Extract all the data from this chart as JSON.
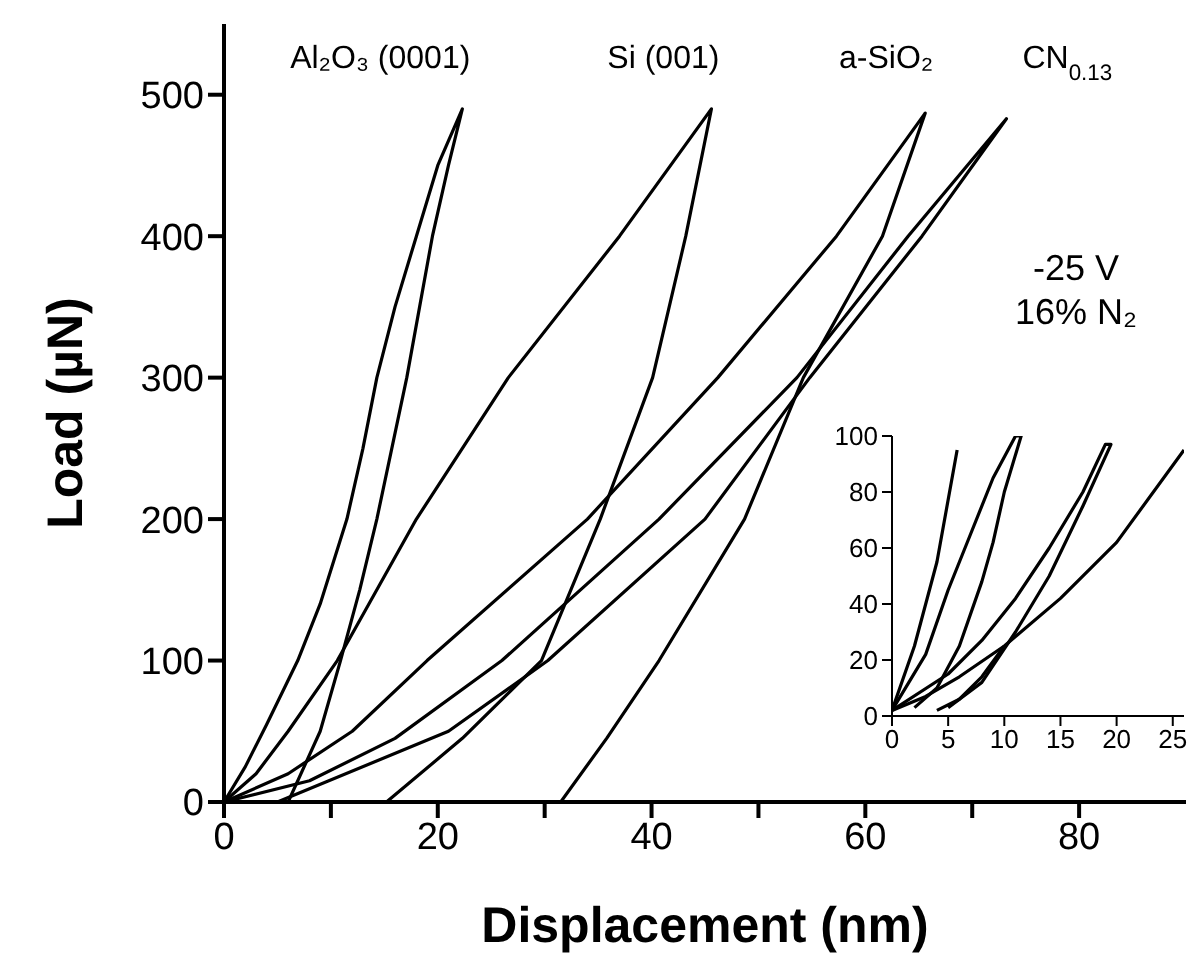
{
  "chart_data": [
    {
      "type": "line",
      "xlabel": "Displacement (nm)",
      "ylabel": "Load (µN)",
      "xlim": [
        0,
        90
      ],
      "xticks": [
        0,
        {
          "value": 10,
          "label": null
        },
        20,
        {
          "value": 30,
          "label": null
        },
        40,
        {
          "value": 50,
          "label": null
        },
        60,
        {
          "value": 70,
          "label": null
        },
        80
      ],
      "ylim": [
        0,
        550
      ],
      "yticks": [
        0,
        100,
        200,
        300,
        400,
        500
      ],
      "marker": "none",
      "annotations": [
        "-25 V",
        "16% N₂"
      ],
      "series": [
        {
          "name": "Al₂O₃ (0001)",
          "color": "#000000",
          "x": [
            0,
            2,
            4,
            6.9,
            9,
            11.5,
            13,
            14.3,
            16,
            18,
            20,
            22.3,
            21,
            19.5,
            18.3,
            17.1,
            15.7,
            14.3,
            12.7,
            10.9,
            9,
            6
          ],
          "values": [
            0,
            25,
            55,
            100,
            140,
            200,
            250,
            300,
            350,
            400,
            450,
            490,
            450,
            400,
            350,
            300,
            250,
            200,
            150,
            100,
            50,
            0
          ]
        },
        {
          "name": "Si (001)",
          "color": "#000000",
          "x": [
            0,
            3,
            6,
            10.6,
            18,
            26.6,
            37,
            45.6,
            43.2,
            40.1,
            35.2,
            29.7,
            22.3,
            15.2
          ],
          "values": [
            0,
            20,
            50,
            100,
            200,
            300,
            400,
            490,
            400,
            300,
            200,
            100,
            45,
            0
          ]
        },
        {
          "name": "a-SiO₂",
          "color": "#000000",
          "x": [
            0,
            6,
            12,
            19,
            34,
            46.2,
            57.3,
            65.6,
            61.6,
            54.2,
            48.7,
            40.7,
            35.8,
            31.5
          ],
          "values": [
            0,
            20,
            50,
            100,
            200,
            300,
            400,
            487,
            400,
            300,
            200,
            100,
            45,
            0
          ]
        },
        {
          "name": "CN$_{0.13}$",
          "color": "#000000",
          "x": [
            0,
            8,
            16,
            26,
            40.7,
            53.6,
            64,
            73.2,
            65.3,
            54.8,
            45,
            30.3,
            21,
            5
          ],
          "values": [
            0,
            15,
            45,
            100,
            200,
            300,
            400,
            483,
            400,
            300,
            200,
            100,
            50,
            0
          ]
        }
      ]
    },
    {
      "type": "line",
      "xlim": [
        0,
        26
      ],
      "xticks": [
        0,
        5,
        10,
        15,
        20,
        25
      ],
      "ylim": [
        0,
        100
      ],
      "yticks": [
        0,
        20,
        40,
        60,
        80,
        100
      ],
      "marker": "none",
      "series": [
        {
          "color": "#000000",
          "x": [
            0,
            2,
            4,
            5.8
          ],
          "values": [
            2,
            25,
            55,
            95
          ]
        },
        {
          "color": "#000000",
          "x": [
            0,
            3,
            5,
            7,
            9,
            11,
            11.5,
            10,
            9,
            8,
            6,
            4,
            2
          ],
          "values": [
            2,
            22,
            45,
            65,
            85,
            100,
            100,
            80,
            62,
            48,
            25,
            10,
            3
          ]
        },
        {
          "color": "#000000",
          "x": [
            0,
            5,
            8,
            11,
            14,
            17,
            19,
            19.5,
            17,
            14,
            11,
            8,
            5
          ],
          "values": [
            2,
            15,
            27,
            42,
            60,
            80,
            97,
            97,
            75,
            50,
            30,
            12,
            3
          ]
        },
        {
          "color": "#000000",
          "x": [
            0,
            3,
            6,
            10,
            15,
            20,
            26
          ],
          "values": [
            2,
            7,
            14,
            25,
            42,
            62,
            95
          ]
        },
        {
          "color": "#000000",
          "x": [
            4,
            6,
            8,
            10
          ],
          "values": [
            2,
            6,
            14,
            25
          ]
        }
      ]
    }
  ]
}
